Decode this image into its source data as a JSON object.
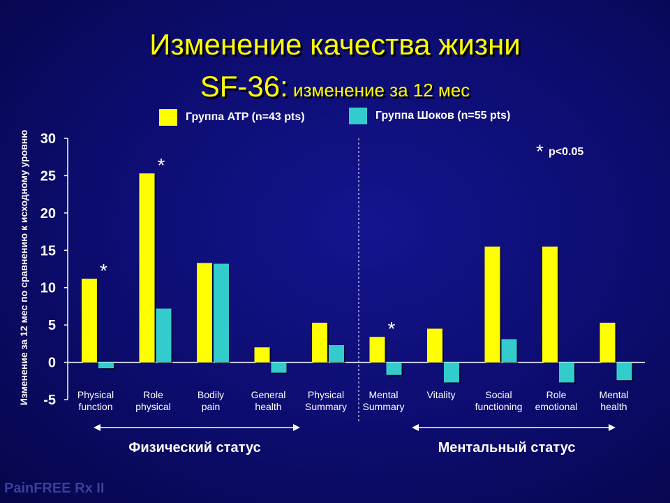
{
  "title": "Изменение качества жизни",
  "subtitle_main": "SF-36:",
  "subtitle_rest": " изменение за 12 мес",
  "footer": "PainFREE Rx II",
  "significance_mark": "*",
  "significance_note": "p<0.05",
  "section_labels": [
    "Физический статус",
    "Ментальный статус"
  ],
  "colors": {
    "series1": "#ffff00",
    "series2": "#33cccc",
    "axis": "#ffffff"
  },
  "chart_data": {
    "type": "bar",
    "ylabel": "Изменение за 12 мес по сравнению к исходному уровню",
    "ylim": [
      -5,
      30
    ],
    "yticks": [
      -5,
      0,
      5,
      10,
      15,
      20,
      25,
      30
    ],
    "categories": [
      [
        "Physical",
        "function"
      ],
      [
        "Role",
        "physical"
      ],
      [
        "Bodily",
        "pain"
      ],
      [
        "General",
        "health"
      ],
      [
        "Physical",
        "Summary"
      ],
      [
        "Mental",
        "Summary"
      ],
      [
        "Vitality"
      ],
      [
        "Social",
        "functioning"
      ],
      [
        "Role",
        "emotional"
      ],
      [
        "Mental",
        "health"
      ]
    ],
    "series": [
      {
        "name": "Группа ATP (n=43 pts)",
        "values": [
          11.2,
          25.3,
          13.3,
          2.0,
          5.3,
          3.4,
          4.5,
          15.5,
          15.5,
          5.3
        ]
      },
      {
        "name": "Группа Шоков (n=55 pts)",
        "values": [
          -0.8,
          7.2,
          13.2,
          -1.4,
          2.3,
          -1.7,
          -2.7,
          3.1,
          -2.7,
          -2.4
        ]
      }
    ],
    "significant_categories": [
      0,
      1,
      5
    ]
  }
}
